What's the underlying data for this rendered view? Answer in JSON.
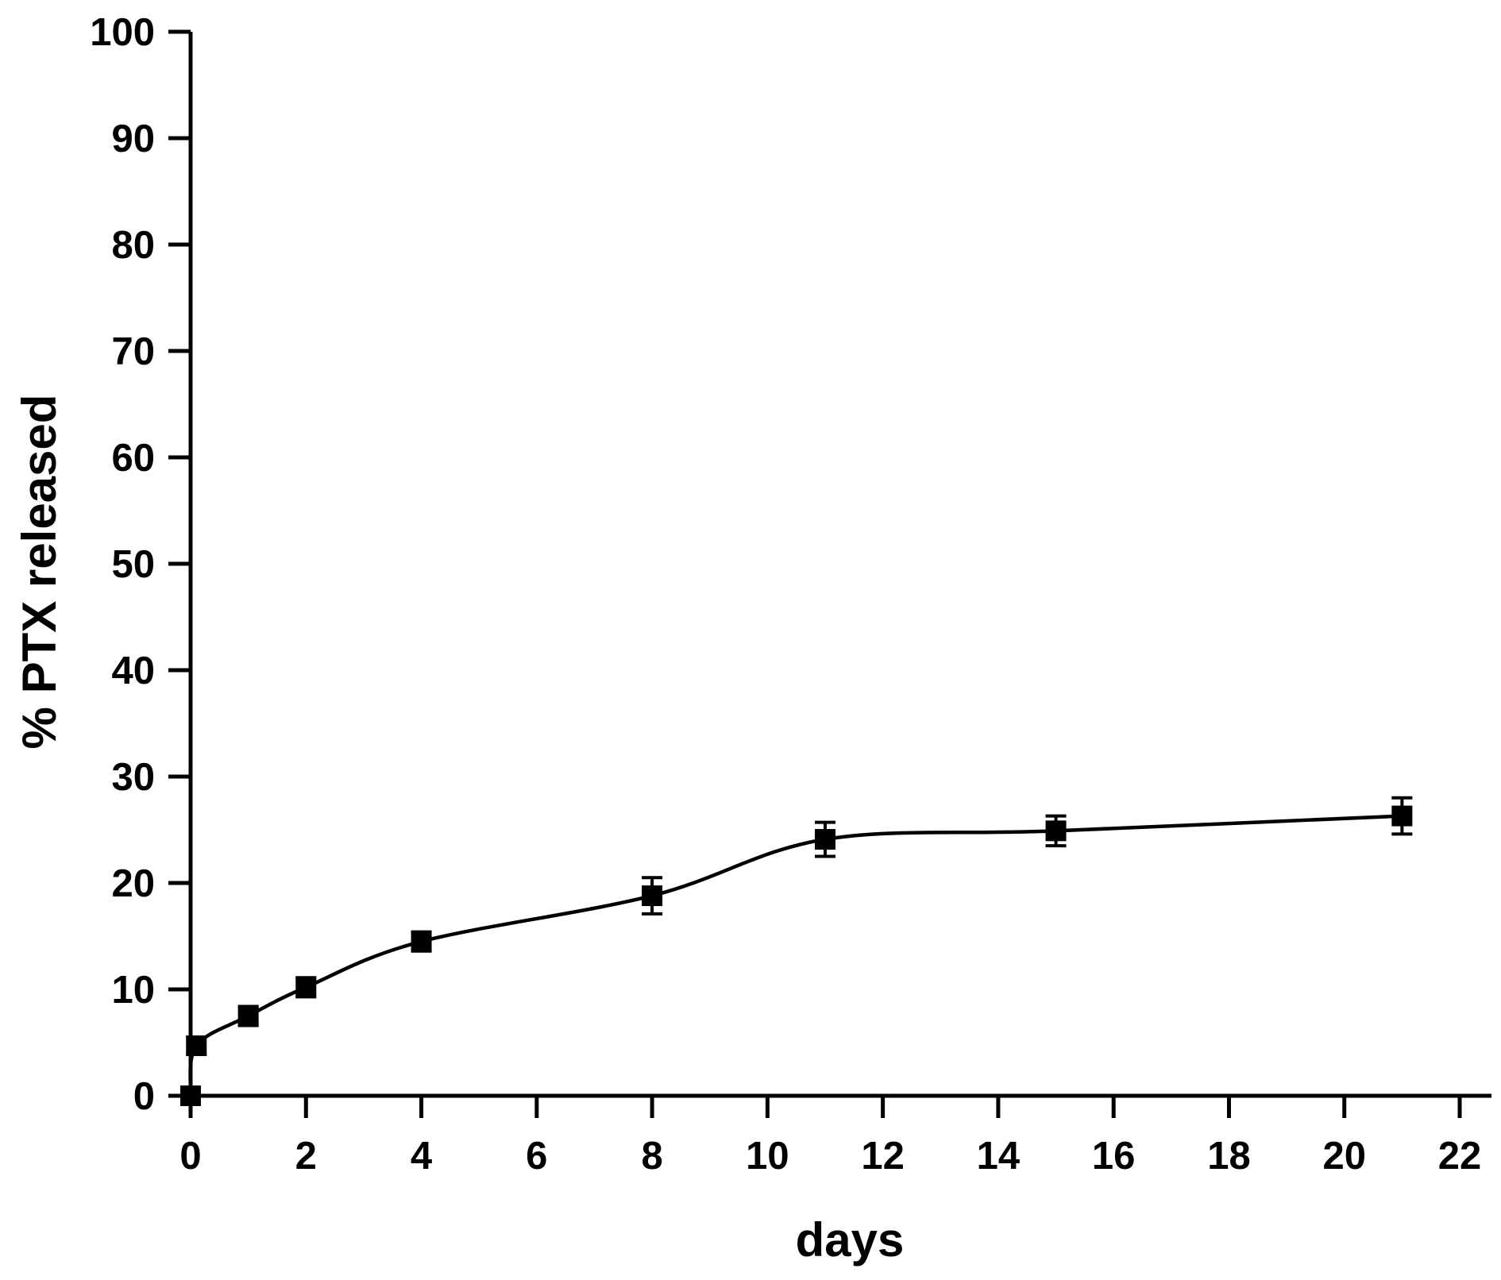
{
  "chart_data": {
    "type": "scatter",
    "title": "",
    "xlabel": "days",
    "ylabel": "% PTX released",
    "xlim": [
      0,
      22
    ],
    "ylim": [
      0,
      100
    ],
    "x_ticks": [
      0,
      2,
      4,
      6,
      8,
      10,
      12,
      14,
      16,
      18,
      20,
      22
    ],
    "y_ticks": [
      0,
      10,
      20,
      30,
      40,
      50,
      60,
      70,
      80,
      90,
      100
    ],
    "grid": false,
    "legend": "none",
    "marker": "square",
    "connector": "smooth line",
    "color": "#000000",
    "series": [
      {
        "points": [
          {
            "x": 0,
            "y": 0,
            "err": 0
          },
          {
            "x": 0.1,
            "y": 4.7,
            "err": 0.8
          },
          {
            "x": 1,
            "y": 7.5,
            "err": 0.9
          },
          {
            "x": 2,
            "y": 10.2,
            "err": 0.9
          },
          {
            "x": 4,
            "y": 14.5,
            "err": 0.9
          },
          {
            "x": 8,
            "y": 18.8,
            "err": 1.7
          },
          {
            "x": 11,
            "y": 24.1,
            "err": 1.6
          },
          {
            "x": 15,
            "y": 24.9,
            "err": 1.4
          },
          {
            "x": 21,
            "y": 26.3,
            "err": 1.7
          }
        ]
      }
    ]
  }
}
